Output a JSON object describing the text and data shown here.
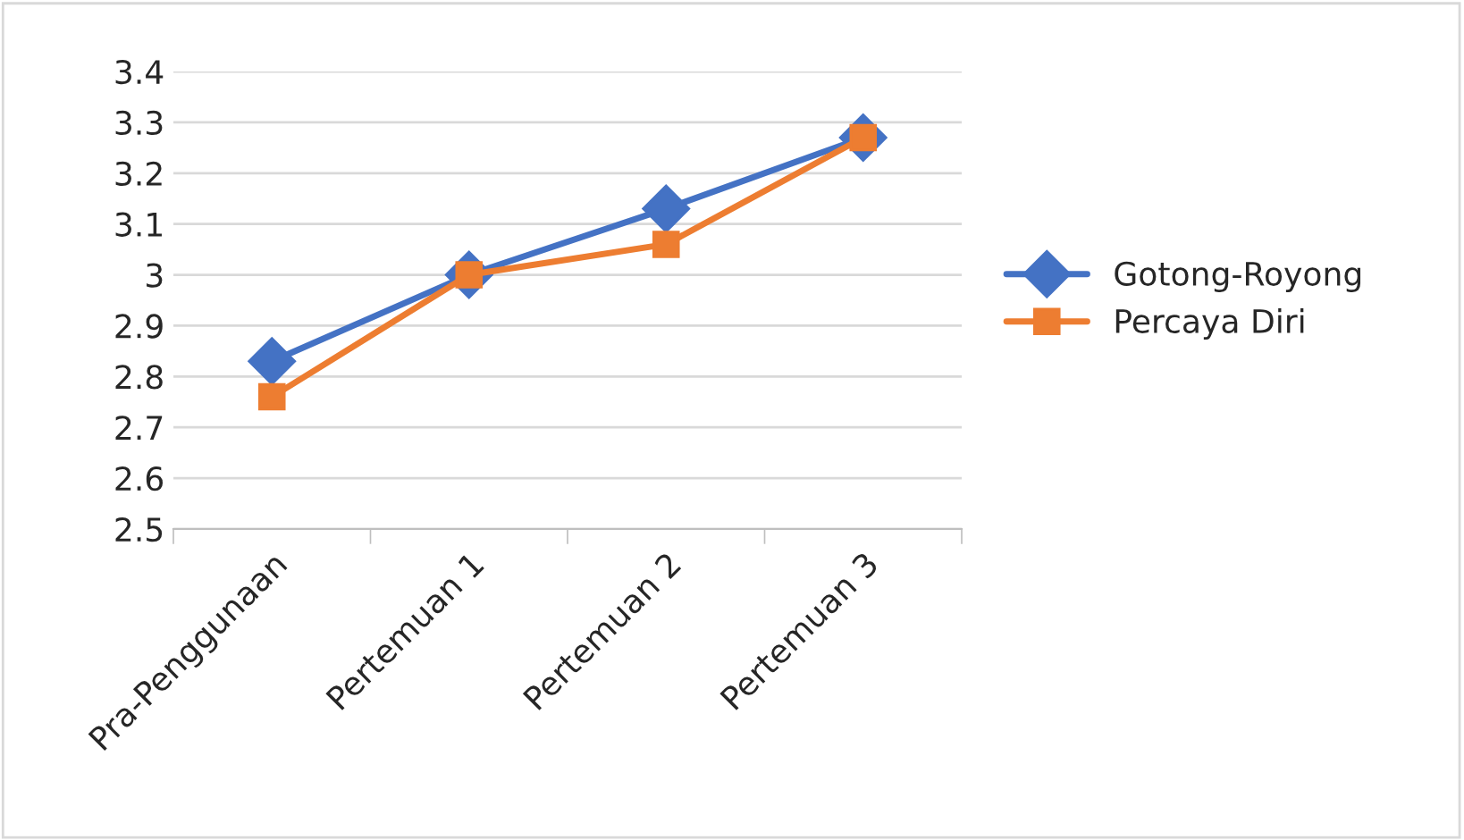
{
  "chart_data": {
    "type": "line",
    "categories": [
      "Pra-Penggunaan",
      "Pertemuan 1",
      "Pertemuan 2",
      "Pertemuan 3"
    ],
    "series": [
      {
        "name": "Gotong-Royong",
        "color": "#4472c4",
        "marker": "diamond",
        "values": [
          2.83,
          3.0,
          3.13,
          3.27
        ]
      },
      {
        "name": "Percaya Diri",
        "color": "#ed7d31",
        "marker": "square",
        "values": [
          2.76,
          3.0,
          3.06,
          3.27
        ]
      }
    ],
    "ylim": [
      2.5,
      3.4
    ],
    "yticks": [
      2.5,
      2.6,
      2.7,
      2.8,
      2.9,
      3,
      3.1,
      3.2,
      3.3,
      3.4
    ],
    "grid": "y",
    "legend": "right",
    "line_style": "solid"
  }
}
